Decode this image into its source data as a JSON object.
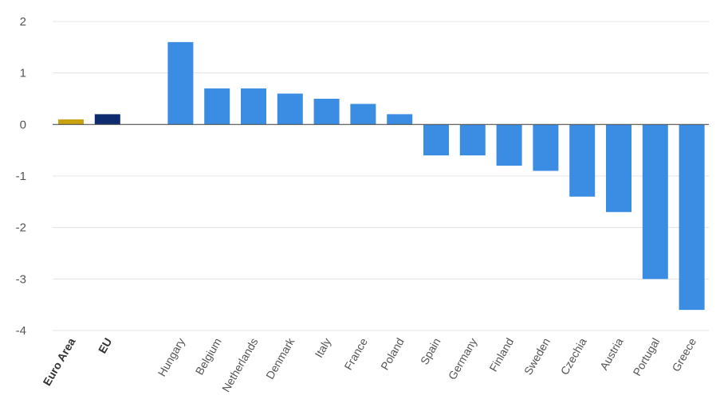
{
  "chart_data": {
    "type": "bar",
    "title": "",
    "xlabel": "",
    "ylabel": "",
    "ylim": [
      -4,
      2
    ],
    "yticks": [
      "2",
      "1",
      "0",
      "-1",
      "-2",
      "-3",
      "-4"
    ],
    "grid": true,
    "legend": "none",
    "categories": [
      "Euro Area",
      "EU",
      "",
      "Hungary",
      "Belgium",
      "Netherlands",
      "Denmark",
      "Italy",
      "France",
      "Poland",
      "Spain",
      "Germany",
      "Finland",
      "Sweden",
      "Czechia",
      "Austria",
      "Portugal",
      "Greece"
    ],
    "values": [
      0.1,
      0.2,
      null,
      1.6,
      0.7,
      0.7,
      0.6,
      0.5,
      0.4,
      0.2,
      -0.6,
      -0.6,
      -0.8,
      -0.9,
      -1.4,
      -1.7,
      -3.0,
      -3.6
    ],
    "bold_categories": [
      "Euro Area",
      "EU"
    ],
    "colors": {
      "euro_area": "#c9a20f",
      "eu": "#0d2b6e",
      "country": "#3b8de3",
      "grid": "#e3e3e3",
      "axis": "#555555"
    }
  }
}
